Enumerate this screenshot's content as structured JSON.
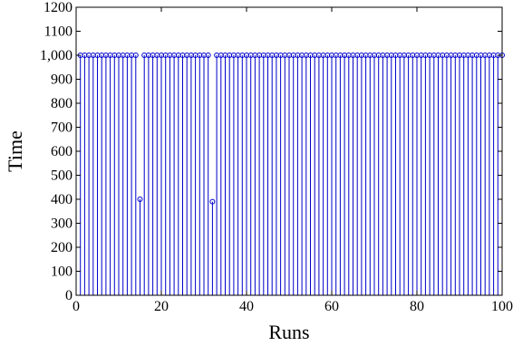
{
  "chart_data": {
    "type": "stem",
    "title": "",
    "xlabel": "Runs",
    "ylabel": "Time",
    "xlim": [
      0,
      100
    ],
    "ylim": [
      0,
      1200
    ],
    "xticks": [
      0,
      20,
      40,
      60,
      80,
      100
    ],
    "xtick_labels": [
      "0",
      "20",
      "40",
      "60",
      "80",
      "100"
    ],
    "yticks": [
      0,
      100,
      200,
      300,
      400,
      500,
      600,
      700,
      800,
      900,
      1000,
      1100,
      1200
    ],
    "ytick_labels": [
      "0",
      "100",
      "200",
      "300",
      "400",
      "500",
      "600",
      "700",
      "800",
      "900",
      "1,000",
      "1100",
      "1200"
    ],
    "grid": false,
    "legend": "none",
    "series": [
      {
        "color": "#0000cc",
        "marker": "circle-open",
        "x": [
          1,
          2,
          3,
          4,
          5,
          6,
          7,
          8,
          9,
          10,
          11,
          12,
          13,
          14,
          15,
          16,
          17,
          18,
          19,
          20,
          21,
          22,
          23,
          24,
          25,
          26,
          27,
          28,
          29,
          30,
          31,
          32,
          33,
          34,
          35,
          36,
          37,
          38,
          39,
          40,
          41,
          42,
          43,
          44,
          45,
          46,
          47,
          48,
          49,
          50,
          51,
          52,
          53,
          54,
          55,
          56,
          57,
          58,
          59,
          60,
          61,
          62,
          63,
          64,
          65,
          66,
          67,
          68,
          69,
          70,
          71,
          72,
          73,
          74,
          75,
          76,
          77,
          78,
          79,
          80,
          81,
          82,
          83,
          84,
          85,
          86,
          87,
          88,
          89,
          90,
          91,
          92,
          93,
          94,
          95,
          96,
          97,
          98,
          99,
          100
        ],
        "values": [
          1000,
          1000,
          1000,
          1000,
          1000,
          1000,
          1000,
          1000,
          1000,
          1000,
          1000,
          1000,
          1000,
          1000,
          400,
          1000,
          1000,
          1000,
          1000,
          1000,
          1000,
          1000,
          1000,
          1000,
          1000,
          1000,
          1000,
          1000,
          1000,
          1000,
          1000,
          390,
          1000,
          1000,
          1000,
          1000,
          1000,
          1000,
          1000,
          1000,
          1000,
          1000,
          1000,
          1000,
          1000,
          1000,
          1000,
          1000,
          1000,
          1000,
          1000,
          1000,
          1000,
          1000,
          1000,
          1000,
          1000,
          1000,
          1000,
          1000,
          1000,
          1000,
          1000,
          1000,
          1000,
          1000,
          1000,
          1000,
          1000,
          1000,
          1000,
          1000,
          1000,
          1000,
          1000,
          1000,
          1000,
          1000,
          1000,
          1000,
          1000,
          1000,
          1000,
          1000,
          1000,
          1000,
          1000,
          1000,
          1000,
          1000,
          1000,
          1000,
          1000,
          1000,
          1000,
          1000,
          1000,
          1000,
          1000,
          1000
        ]
      }
    ]
  }
}
